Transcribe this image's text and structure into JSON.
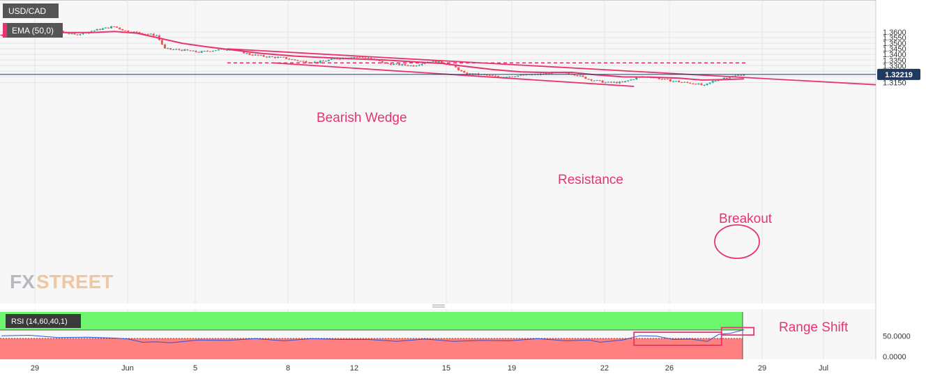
{
  "header": {
    "symbol": "USD/CAD",
    "ema_label": "EMA (50,0)"
  },
  "logo": {
    "prefix": "FX",
    "suffix": "STREET"
  },
  "annotations": {
    "wedge": "Bearish Wedge",
    "resistance": "Resistance",
    "breakout": "Breakout",
    "range_shift": "Range Shift"
  },
  "price_badge": "1.32219",
  "rsi_label": "RSI (14,60,40,1)",
  "colors": {
    "candle_up": "#26a69a",
    "candle_down": "#ef5350",
    "ema": "#e8336e",
    "annotation": "#e8336e",
    "rsi_line": "#2f55d4",
    "rsi_upper_zone": "#6ef56e",
    "rsi_lower_zone": "#ff8080",
    "price_badge_bg": "#1f3a5f"
  },
  "chart_data": [
    {
      "type": "candlestick",
      "pair": "USD/CAD",
      "timeframe": "hourly",
      "y_axis_ticks": [
        "1.3600",
        "1.3550",
        "1.3500",
        "1.3450",
        "1.3400",
        "1.3350",
        "1.3300",
        "1.3250",
        "1.3200",
        "1.3150"
      ],
      "ylim": [
        1.311,
        1.3655
      ],
      "x_axis_ticks": [
        "29",
        "Jun",
        "5",
        "8",
        "12",
        "15",
        "19",
        "22",
        "26",
        "29",
        "Jul"
      ],
      "current_price": 1.32219,
      "price_path": [
        [
          0,
          1.3575
        ],
        [
          8,
          1.36
        ],
        [
          14,
          1.362
        ],
        [
          18,
          1.364
        ],
        [
          22,
          1.36
        ],
        [
          26,
          1.3575
        ],
        [
          34,
          1.362
        ],
        [
          40,
          1.365
        ],
        [
          44,
          1.361
        ],
        [
          50,
          1.359
        ],
        [
          55,
          1.357
        ],
        [
          58,
          1.345
        ],
        [
          64,
          1.344
        ],
        [
          70,
          1.342
        ],
        [
          76,
          1.344
        ],
        [
          82,
          1.345
        ],
        [
          88,
          1.34
        ],
        [
          94,
          1.338
        ],
        [
          100,
          1.337
        ],
        [
          106,
          1.334
        ],
        [
          112,
          1.333
        ],
        [
          118,
          1.336
        ],
        [
          124,
          1.338
        ],
        [
          130,
          1.337
        ],
        [
          136,
          1.332
        ],
        [
          140,
          1.331
        ],
        [
          146,
          1.33
        ],
        [
          152,
          1.334
        ],
        [
          156,
          1.333
        ],
        [
          160,
          1.33
        ],
        [
          164,
          1.323
        ],
        [
          170,
          1.322
        ],
        [
          176,
          1.32
        ],
        [
          182,
          1.321
        ],
        [
          190,
          1.322
        ],
        [
          196,
          1.324
        ],
        [
          202,
          1.323
        ],
        [
          208,
          1.318
        ],
        [
          214,
          1.315
        ],
        [
          220,
          1.315
        ],
        [
          226,
          1.32
        ],
        [
          230,
          1.32
        ],
        [
          236,
          1.317
        ],
        [
          242,
          1.315
        ],
        [
          246,
          1.314
        ],
        [
          249,
          1.312
        ],
        [
          252,
          1.316
        ],
        [
          256,
          1.319
        ],
        [
          260,
          1.321
        ],
        [
          263,
          1.3222
        ]
      ],
      "ema_path": [
        [
          0,
          1.357
        ],
        [
          10,
          1.359
        ],
        [
          20,
          1.3595
        ],
        [
          32,
          1.3595
        ],
        [
          40,
          1.3605
        ],
        [
          48,
          1.359
        ],
        [
          56,
          1.3545
        ],
        [
          64,
          1.35
        ],
        [
          72,
          1.347
        ],
        [
          82,
          1.344
        ],
        [
          92,
          1.341
        ],
        [
          104,
          1.3385
        ],
        [
          116,
          1.337
        ],
        [
          126,
          1.336
        ],
        [
          136,
          1.335
        ],
        [
          146,
          1.3335
        ],
        [
          156,
          1.332
        ],
        [
          164,
          1.3295
        ],
        [
          174,
          1.3265
        ],
        [
          184,
          1.3245
        ],
        [
          194,
          1.3238
        ],
        [
          202,
          1.324
        ],
        [
          210,
          1.322
        ],
        [
          220,
          1.32
        ],
        [
          230,
          1.3198
        ],
        [
          240,
          1.3188
        ],
        [
          248,
          1.3172
        ],
        [
          256,
          1.3176
        ],
        [
          263,
          1.3182
        ]
      ],
      "wedge_upper": [
        [
          80,
          1.345
        ],
        [
          312,
          1.313
        ]
      ],
      "wedge_lower": [
        [
          96,
          1.3325
        ],
        [
          224,
          1.3115
        ]
      ],
      "resistance_level": 1.3325,
      "resistance_range": [
        80,
        264
      ]
    },
    {
      "type": "line",
      "indicator": "RSI",
      "label": "RSI (14,60,40,1)",
      "y_axis_ticks": [
        "50.0000",
        "0.0000"
      ],
      "ylim": [
        0,
        100
      ],
      "upper_zone": 60,
      "lower_zone": 40,
      "rsi_path": [
        [
          0,
          52
        ],
        [
          10,
          50
        ],
        [
          20,
          48
        ],
        [
          30,
          46
        ],
        [
          40,
          47
        ],
        [
          45,
          42
        ],
        [
          50,
          38
        ],
        [
          55,
          36
        ],
        [
          60,
          37
        ],
        [
          70,
          40
        ],
        [
          80,
          42
        ],
        [
          90,
          43
        ],
        [
          100,
          41
        ],
        [
          110,
          43
        ],
        [
          120,
          44
        ],
        [
          130,
          41
        ],
        [
          140,
          40
        ],
        [
          150,
          42
        ],
        [
          160,
          40
        ],
        [
          170,
          39
        ],
        [
          180,
          41
        ],
        [
          190,
          43
        ],
        [
          200,
          41
        ],
        [
          208,
          40
        ],
        [
          212,
          38
        ],
        [
          220,
          40
        ],
        [
          226,
          52
        ],
        [
          232,
          48
        ],
        [
          238,
          44
        ],
        [
          244,
          42
        ],
        [
          250,
          40
        ],
        [
          254,
          52
        ],
        [
          258,
          57
        ],
        [
          263,
          62
        ]
      ],
      "highlight_boxes": [
        [
          224,
          255,
          30,
          58
        ],
        [
          255,
          263,
          52,
          68
        ]
      ]
    }
  ]
}
